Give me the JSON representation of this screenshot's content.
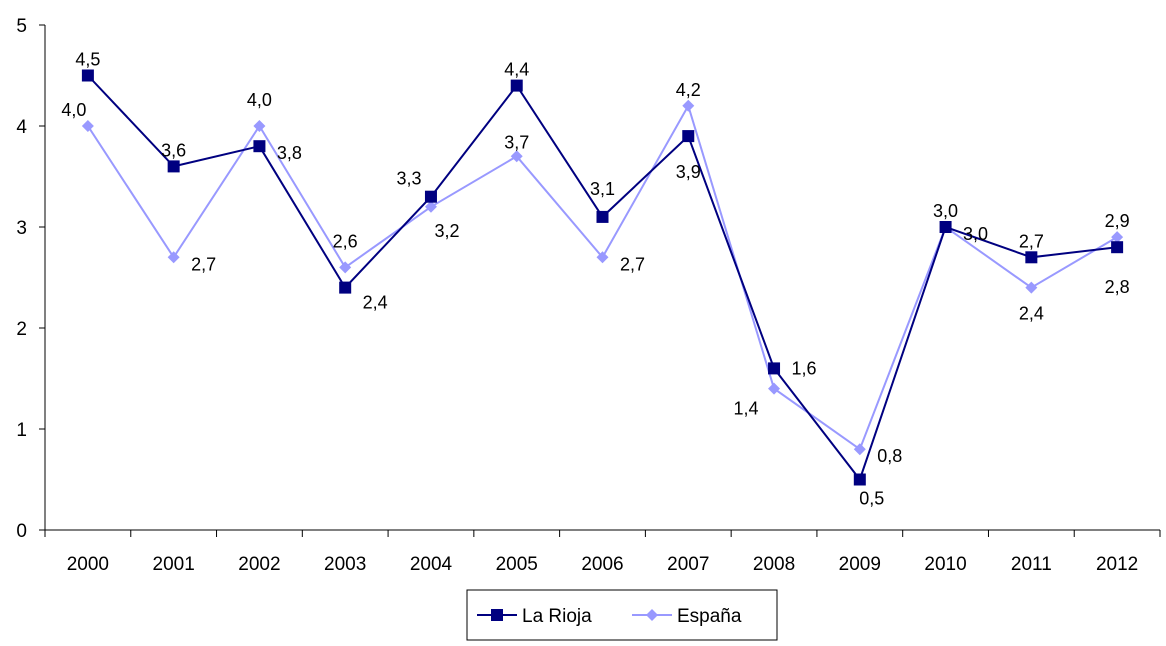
{
  "chart_data": {
    "type": "line",
    "title": "",
    "xlabel": "",
    "ylabel": "",
    "categories": [
      "2000",
      "2001",
      "2002",
      "2003",
      "2004",
      "2005",
      "2006",
      "2007",
      "2008",
      "2009",
      "2010",
      "2011",
      "2012"
    ],
    "ylim": [
      0,
      5
    ],
    "yticks": [
      0,
      1,
      2,
      3,
      4,
      5
    ],
    "grid": false,
    "legend_position": "bottom",
    "series": [
      {
        "name": "La Rioja",
        "color": "#000080",
        "marker": "square",
        "values": [
          4.5,
          3.6,
          3.8,
          2.4,
          3.3,
          4.4,
          3.1,
          3.9,
          1.6,
          0.5,
          3.0,
          2.7,
          2.8
        ],
        "labels": [
          "4,5",
          "3,6",
          "3,8",
          "2,4",
          "3,3",
          "4,4",
          "3,1",
          "3,9",
          "1,6",
          "0,5",
          "3,0",
          "2,7",
          "2,8"
        ]
      },
      {
        "name": "España",
        "color": "#9999FF",
        "marker": "diamond",
        "values": [
          4.0,
          2.7,
          4.0,
          2.6,
          3.2,
          3.7,
          2.7,
          4.2,
          1.4,
          0.8,
          3.0,
          2.4,
          2.9
        ],
        "labels": [
          "4,0",
          "2,7",
          "4,0",
          "2,6",
          "3,2",
          "3,7",
          "2,7",
          "4,2",
          "1,4",
          "0,8",
          "3,0",
          "2,4",
          "2,9"
        ]
      }
    ]
  }
}
